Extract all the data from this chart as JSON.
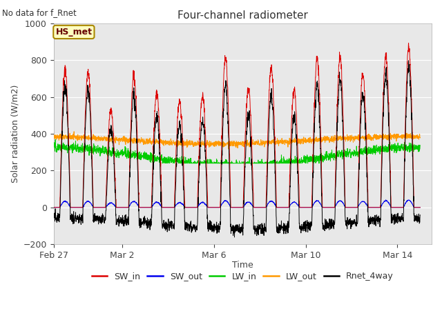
{
  "title": "Four-channel radiometer",
  "top_left_text": "No data for f_Rnet",
  "station_label": "HS_met",
  "ylabel": "Solar radiation (W/m2)",
  "xlabel": "Time",
  "ylim": [
    -200,
    1000
  ],
  "yticks": [
    -200,
    0,
    200,
    400,
    600,
    800,
    1000
  ],
  "x_tick_labels": [
    "Feb 27",
    "Mar 2",
    "Mar 6",
    "Mar 10",
    "Mar 14"
  ],
  "x_tick_positions": [
    0,
    3,
    7,
    11,
    15
  ],
  "xlim": [
    0,
    16.5
  ],
  "plot_bg_color": "#e8e8e8",
  "colors": {
    "SW_in": "#dd0000",
    "SW_out": "#0000ee",
    "LW_in": "#00cc00",
    "LW_out": "#ff9900",
    "Rnet_4way": "#000000"
  },
  "num_days": 16,
  "pts_per_day": 144
}
